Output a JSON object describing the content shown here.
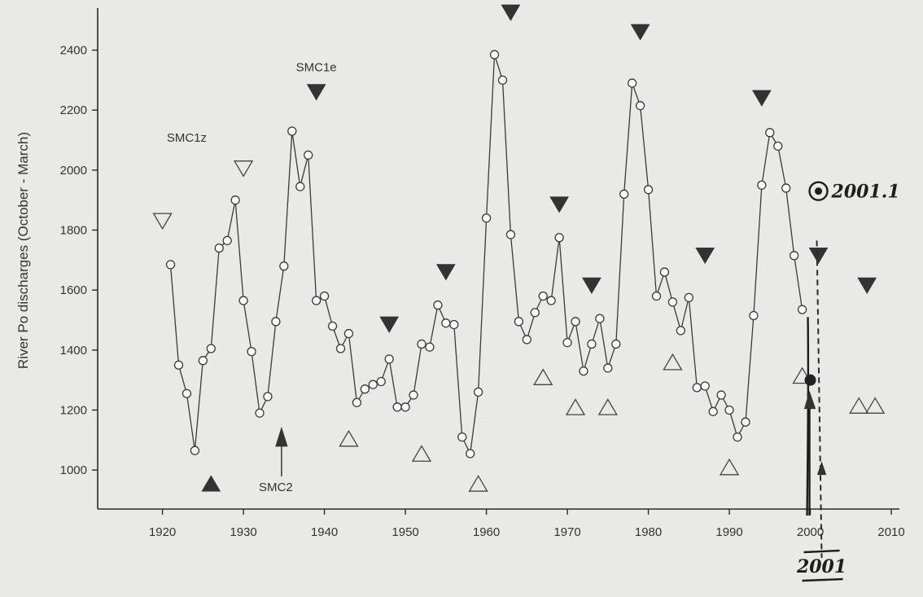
{
  "chart_data": {
    "type": "line",
    "title": "",
    "xlabel": "",
    "ylabel": "River Po discharges (October - March)",
    "xlim": [
      1912,
      2011
    ],
    "ylim": [
      870,
      2540
    ],
    "x_ticks": [
      1920,
      1930,
      1940,
      1950,
      1960,
      1970,
      1980,
      1990,
      2000,
      2010
    ],
    "y_ticks": [
      1000,
      1200,
      1400,
      1600,
      1800,
      2000,
      2200,
      2400
    ],
    "grid": false,
    "series": [
      {
        "x": [
          1921,
          1922,
          1923,
          1924,
          1925,
          1926,
          1927,
          1928,
          1929,
          1930,
          1931,
          1932,
          1933,
          1934,
          1935,
          1936,
          1937,
          1938,
          1939,
          1940,
          1941,
          1942,
          1943,
          1944,
          1945,
          1946,
          1947,
          1948,
          1949,
          1950,
          1951,
          1952,
          1953,
          1954,
          1955,
          1956,
          1957,
          1958,
          1959,
          1960,
          1961,
          1962,
          1963,
          1964,
          1965,
          1966,
          1967,
          1968,
          1969,
          1970,
          1971,
          1972,
          1973,
          1974,
          1975,
          1976,
          1977,
          1978,
          1979,
          1980,
          1981,
          1982,
          1983,
          1984,
          1985,
          1986,
          1987,
          1988,
          1989,
          1990,
          1991,
          1992,
          1993,
          1994,
          1995,
          1996,
          1997,
          1998,
          1999
        ],
        "y": [
          1685,
          1350,
          1255,
          1065,
          1365,
          1405,
          1740,
          1765,
          1900,
          1565,
          1395,
          1190,
          1245,
          1495,
          1680,
          2130,
          1945,
          2050,
          1565,
          1580,
          1480,
          1405,
          1455,
          1225,
          1270,
          1285,
          1295,
          1370,
          1210,
          1210,
          1250,
          1420,
          1410,
          1550,
          1490,
          1485,
          1110,
          1055,
          1260,
          1840,
          2385,
          2300,
          1785,
          1495,
          1435,
          1525,
          1580,
          1565,
          1775,
          1425,
          1495,
          1330,
          1420,
          1505,
          1340,
          1420,
          1920,
          2290,
          2215,
          1935,
          1580,
          1660,
          1560,
          1465,
          1575,
          1275,
          1280,
          1195,
          1250,
          1200,
          1110,
          1160,
          1515,
          1950,
          2125,
          2080,
          1940,
          1715,
          1535
        ]
      }
    ],
    "annotations": {
      "filled_down_triangles": [
        {
          "x": 1939,
          "y": 2260
        },
        {
          "x": 1948,
          "y": 1485
        },
        {
          "x": 1955,
          "y": 1660
        },
        {
          "x": 1963,
          "y": 2525
        },
        {
          "x": 1969,
          "y": 1885
        },
        {
          "x": 1973,
          "y": 1615
        },
        {
          "x": 1979,
          "y": 2460
        },
        {
          "x": 1987,
          "y": 1715
        },
        {
          "x": 1994,
          "y": 2240
        },
        {
          "x": 2001,
          "y": 1715
        },
        {
          "x": 2007,
          "y": 1615
        }
      ],
      "filled_up_triangles": [
        {
          "x": 1926,
          "y": 955
        }
      ],
      "open_down_triangles": [
        {
          "x": 1920,
          "y": 1830
        },
        {
          "x": 1930,
          "y": 2005
        }
      ],
      "open_up_triangles": [
        {
          "x": 1943,
          "y": 1105
        },
        {
          "x": 1952,
          "y": 1055
        },
        {
          "x": 1959,
          "y": 955
        },
        {
          "x": 1967,
          "y": 1310
        },
        {
          "x": 1971,
          "y": 1210
        },
        {
          "x": 1975,
          "y": 1210
        },
        {
          "x": 1983,
          "y": 1360
        },
        {
          "x": 1990,
          "y": 1010
        },
        {
          "x": 1999,
          "y": 1315
        },
        {
          "x": 2006,
          "y": 1215
        },
        {
          "x": 2008,
          "y": 1215
        }
      ],
      "labels": [
        {
          "text": "SMC1z",
          "x": 1923,
          "y": 2095
        },
        {
          "text": "SMC1e",
          "x": 1939,
          "y": 2330
        },
        {
          "text": "SMC2",
          "x": 1934,
          "y": 930
        }
      ],
      "handwritten": {
        "point_label": "2001.1",
        "axis_label": "2001",
        "point_x": 2000,
        "point_y": 1300
      }
    }
  }
}
